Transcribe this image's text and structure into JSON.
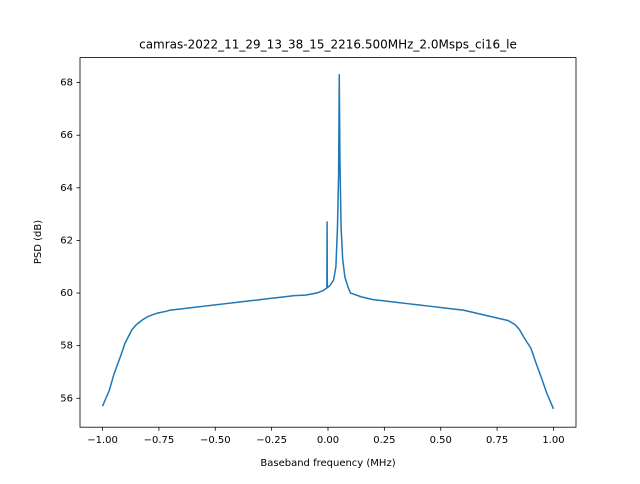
{
  "chart_data": {
    "type": "line",
    "title": "camras-2022_11_29_13_38_15_2216.500MHz_2.0Msps_ci16_le",
    "x_label": "Baseband frequency (MHz)",
    "y_label": "PSD (dB)",
    "series": [
      {
        "color": "#1f77b4",
        "x": [
          -1.0,
          -0.99,
          -0.97,
          -0.95,
          -0.92,
          -0.9,
          -0.87,
          -0.85,
          -0.82,
          -0.8,
          -0.77,
          -0.75,
          -0.72,
          -0.7,
          -0.65,
          -0.6,
          -0.55,
          -0.5,
          -0.45,
          -0.4,
          -0.35,
          -0.3,
          -0.25,
          -0.2,
          -0.15,
          -0.1,
          -0.05,
          -0.02,
          -0.005,
          -0.004,
          -0.003,
          0.01,
          0.025,
          0.035,
          0.042,
          0.047,
          0.05,
          0.053,
          0.058,
          0.065,
          0.075,
          0.09,
          0.1,
          0.15,
          0.2,
          0.25,
          0.3,
          0.35,
          0.4,
          0.45,
          0.5,
          0.55,
          0.6,
          0.65,
          0.7,
          0.75,
          0.8,
          0.83,
          0.85,
          0.87,
          0.9,
          0.92,
          0.95,
          0.97,
          0.99,
          1.0
        ],
        "values": [
          55.7,
          55.9,
          56.3,
          56.9,
          57.6,
          58.1,
          58.6,
          58.8,
          59.0,
          59.1,
          59.2,
          59.25,
          59.3,
          59.35,
          59.4,
          59.45,
          59.5,
          59.55,
          59.6,
          59.65,
          59.7,
          59.75,
          59.8,
          59.85,
          59.9,
          59.92,
          60.0,
          60.1,
          60.2,
          62.7,
          60.2,
          60.3,
          60.5,
          61.0,
          62.5,
          64.5,
          68.3,
          65.0,
          62.5,
          61.3,
          60.6,
          60.2,
          60.0,
          59.85,
          59.75,
          59.7,
          59.65,
          59.6,
          59.55,
          59.5,
          59.45,
          59.4,
          59.35,
          59.25,
          59.15,
          59.05,
          58.95,
          58.8,
          58.6,
          58.3,
          57.9,
          57.4,
          56.7,
          56.2,
          55.8,
          55.6
        ]
      }
    ],
    "xlim": [
      -1.1,
      1.1
    ],
    "ylim": [
      54.9,
      68.95
    ],
    "xticks": [
      {
        "value": -1,
        "label": "−1.00"
      },
      {
        "value": -0.75,
        "label": "−0.75"
      },
      {
        "value": -0.5,
        "label": "−0.50"
      },
      {
        "value": -0.25,
        "label": "−0.25"
      },
      {
        "value": 0,
        "label": "0.00"
      },
      {
        "value": 0.25,
        "label": "0.25"
      },
      {
        "value": 0.5,
        "label": "0.50"
      },
      {
        "value": 0.75,
        "label": "0.75"
      },
      {
        "value": 1,
        "label": "1.00"
      }
    ],
    "yticks": [
      56,
      58,
      60,
      62,
      64,
      66,
      68
    ]
  }
}
